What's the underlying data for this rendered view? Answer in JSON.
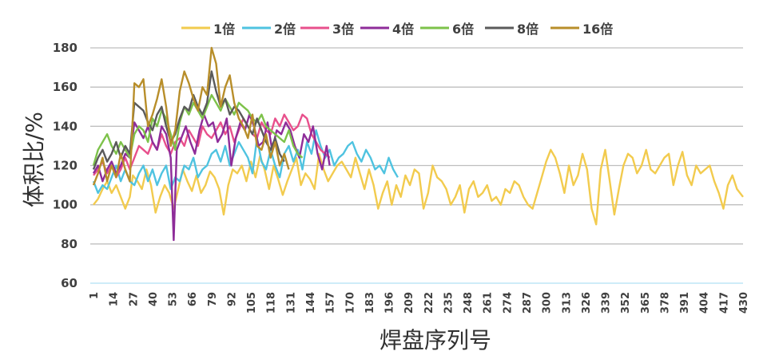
{
  "chart_data": {
    "type": "line",
    "title": "",
    "xlabel": "焊盘序列号",
    "ylabel": "体积比/%",
    "ylim": [
      60,
      180
    ],
    "yticks": [
      60,
      80,
      100,
      120,
      140,
      160,
      180
    ],
    "xlim": [
      1,
      430
    ],
    "xticks": [
      1,
      14,
      27,
      40,
      53,
      66,
      79,
      92,
      105,
      118,
      131,
      144,
      157,
      170,
      183,
      196,
      209,
      222,
      235,
      248,
      261,
      274,
      287,
      300,
      313,
      326,
      339,
      352,
      365,
      378,
      391,
      404,
      417,
      430
    ],
    "grid": "horizontal",
    "legend_position": "top",
    "series": [
      {
        "name": "1倍",
        "color": "#F2CB4E",
        "x": [
          1,
          4,
          7,
          10,
          13,
          16,
          19,
          22,
          25,
          27,
          30,
          33,
          36,
          39,
          42,
          45,
          48,
          51,
          54,
          57,
          60,
          63,
          66,
          69,
          72,
          75,
          78,
          81,
          84,
          87,
          90,
          93,
          96,
          99,
          102,
          105,
          108,
          111,
          114,
          117,
          120,
          123,
          126,
          129,
          132,
          135,
          138,
          141,
          144,
          147,
          150,
          153,
          156,
          159,
          162,
          165,
          168,
          171,
          174,
          177,
          180,
          183,
          186,
          189,
          192,
          195,
          198,
          201,
          204,
          207,
          210,
          213,
          216,
          219,
          222,
          225,
          228,
          231,
          234,
          237,
          240,
          243,
          246,
          249,
          252,
          255,
          258,
          261,
          264,
          267,
          270,
          273,
          276,
          279,
          282,
          285,
          288,
          291,
          294,
          297,
          300,
          303,
          306,
          309,
          312,
          315,
          318,
          321,
          324,
          327,
          330,
          333,
          336,
          339,
          342,
          345,
          348,
          351,
          354,
          357,
          360,
          363,
          366,
          369,
          372,
          375,
          378,
          381,
          384,
          387,
          390,
          393,
          396,
          399,
          402,
          405,
          408,
          411,
          414,
          417,
          420,
          423,
          426,
          430
        ],
        "y": [
          100,
          103,
          108,
          112,
          106,
          110,
          104,
          98,
          104,
          115,
          112,
          108,
          118,
          110,
          96,
          104,
          110,
          106,
          98,
          108,
          118,
          112,
          107,
          115,
          106,
          110,
          117,
          114,
          108,
          95,
          110,
          118,
          116,
          120,
          112,
          122,
          114,
          125,
          118,
          108,
          120,
          113,
          105,
          112,
          118,
          124,
          110,
          116,
          113,
          108,
          126,
          118,
          112,
          116,
          120,
          122,
          118,
          114,
          124,
          116,
          108,
          118,
          110,
          98,
          106,
          112,
          100,
          110,
          104,
          115,
          110,
          118,
          116,
          98,
          106,
          120,
          114,
          112,
          108,
          100,
          104,
          110,
          96,
          108,
          112,
          104,
          106,
          110,
          102,
          104,
          100,
          108,
          106,
          112,
          110,
          104,
          100,
          98,
          106,
          114,
          122,
          128,
          124,
          116,
          106,
          120,
          110,
          115,
          126,
          118,
          98,
          90,
          118,
          128,
          112,
          95,
          108,
          120,
          126,
          124,
          116,
          120,
          128,
          118,
          116,
          120,
          124,
          126,
          110,
          120,
          127,
          115,
          110,
          120,
          116,
          118,
          120,
          112,
          106,
          98,
          110,
          115,
          108,
          104
        ]
      },
      {
        "name": "2倍",
        "color": "#4FC3E0",
        "x": [
          1,
          4,
          7,
          10,
          13,
          16,
          19,
          22,
          25,
          28,
          31,
          34,
          37,
          40,
          43,
          46,
          49,
          52,
          55,
          58,
          61,
          64,
          67,
          70,
          73,
          76,
          79,
          82,
          85,
          88,
          91,
          94,
          97,
          100,
          103,
          106,
          109,
          112,
          115,
          118,
          121,
          124,
          127,
          130,
          133,
          136,
          139,
          142,
          145,
          148,
          151,
          154,
          157,
          160,
          163,
          166,
          169,
          172,
          175,
          178,
          181,
          184,
          187,
          190,
          193,
          196,
          199,
          202
        ],
        "y": [
          112,
          106,
          110,
          108,
          114,
          120,
          112,
          118,
          112,
          110,
          116,
          120,
          112,
          118,
          110,
          116,
          120,
          108,
          114,
          112,
          120,
          118,
          124,
          114,
          118,
          120,
          126,
          128,
          122,
          130,
          120,
          126,
          132,
          128,
          124,
          116,
          134,
          122,
          118,
          128,
          120,
          114,
          126,
          130,
          122,
          128,
          118,
          132,
          126,
          138,
          130,
          124,
          128,
          120,
          124,
          126,
          130,
          132,
          126,
          122,
          128,
          124,
          118,
          120,
          116,
          124,
          118,
          114
        ]
      },
      {
        "name": "3倍",
        "color": "#E8508C",
        "x": [
          1,
          4,
          7,
          10,
          13,
          16,
          19,
          22,
          25,
          28,
          31,
          34,
          37,
          40,
          43,
          46,
          49,
          52,
          55,
          58,
          61,
          64,
          67,
          70,
          73,
          76,
          79,
          82,
          85,
          88,
          91,
          94,
          97,
          100,
          103,
          106,
          109,
          112,
          115,
          118,
          121,
          124,
          127,
          130,
          133,
          136,
          139,
          142,
          145,
          148,
          151,
          154,
          157
        ],
        "y": [
          115,
          118,
          122,
          116,
          120,
          114,
          118,
          124,
          118,
          124,
          130,
          128,
          126,
          132,
          128,
          136,
          130,
          126,
          132,
          134,
          130,
          138,
          134,
          130,
          140,
          136,
          134,
          138,
          142,
          136,
          140,
          132,
          138,
          144,
          140,
          136,
          134,
          142,
          138,
          136,
          144,
          140,
          146,
          142,
          138,
          140,
          146,
          144,
          136,
          132,
          128,
          126,
          124
        ]
      },
      {
        "name": "4倍",
        "color": "#8E2C99",
        "x": [
          1,
          4,
          7,
          10,
          13,
          16,
          19,
          22,
          25,
          28,
          31,
          34,
          37,
          40,
          43,
          46,
          49,
          52,
          54,
          56,
          59,
          62,
          65,
          68,
          71,
          74,
          77,
          80,
          83,
          86,
          89,
          92,
          95,
          98,
          101,
          104,
          107,
          110,
          113,
          116,
          119,
          122,
          125,
          128,
          131,
          134,
          137,
          140,
          143,
          146,
          149,
          152,
          155,
          157
        ],
        "y": [
          116,
          120,
          112,
          118,
          122,
          116,
          120,
          126,
          124,
          142,
          138,
          134,
          140,
          132,
          128,
          140,
          136,
          124,
          82,
          128,
          134,
          140,
          132,
          126,
          138,
          146,
          140,
          142,
          132,
          136,
          144,
          120,
          134,
          142,
          138,
          146,
          140,
          130,
          132,
          142,
          128,
          138,
          136,
          142,
          138,
          130,
          124,
          136,
          132,
          140,
          126,
          118,
          130,
          120
        ]
      },
      {
        "name": "6倍",
        "color": "#7DC24A",
        "x": [
          1,
          4,
          7,
          10,
          13,
          16,
          19,
          22,
          25,
          28,
          31,
          34,
          37,
          40,
          43,
          46,
          49,
          52,
          55,
          58,
          61,
          64,
          67,
          70,
          73,
          76,
          79,
          82,
          85,
          88,
          91,
          94,
          97,
          100,
          103,
          106,
          109,
          112,
          115,
          118,
          121,
          124,
          127,
          130,
          133,
          136,
          139
        ],
        "y": [
          120,
          128,
          132,
          136,
          130,
          126,
          132,
          128,
          124,
          136,
          140,
          138,
          132,
          144,
          140,
          148,
          144,
          136,
          128,
          142,
          150,
          146,
          152,
          148,
          144,
          150,
          156,
          152,
          148,
          154,
          150,
          146,
          152,
          150,
          148,
          144,
          142,
          146,
          140,
          138,
          136,
          134,
          132,
          138,
          130,
          126,
          124
        ]
      },
      {
        "name": "8倍",
        "color": "#5A5A5A",
        "x": [
          1,
          4,
          7,
          10,
          13,
          16,
          19,
          22,
          25,
          28,
          31,
          34,
          37,
          40,
          43,
          46,
          49,
          52,
          55,
          58,
          61,
          64,
          67,
          70,
          73,
          76,
          79,
          82,
          85,
          88,
          91,
          94,
          97,
          100,
          103,
          106,
          109,
          112,
          115,
          118,
          121,
          124,
          127
        ],
        "y": [
          118,
          124,
          128,
          122,
          126,
          132,
          124,
          130,
          126,
          152,
          150,
          148,
          142,
          138,
          146,
          150,
          140,
          132,
          136,
          144,
          150,
          148,
          156,
          150,
          146,
          152,
          168,
          158,
          150,
          154,
          146,
          150,
          148,
          144,
          140,
          136,
          144,
          138,
          132,
          128,
          134,
          126,
          122
        ]
      },
      {
        "name": "16倍",
        "color": "#B88E2A",
        "x": [
          1,
          4,
          7,
          10,
          13,
          16,
          19,
          22,
          25,
          28,
          31,
          34,
          37,
          40,
          43,
          46,
          49,
          52,
          55,
          58,
          61,
          64,
          67,
          70,
          73,
          76,
          79,
          82,
          85,
          88,
          91,
          94,
          97,
          100,
          103,
          106,
          109,
          112,
          115,
          118,
          121,
          124,
          127,
          130
        ],
        "y": [
          110,
          116,
          124,
          112,
          120,
          114,
          126,
          118,
          112,
          162,
          160,
          164,
          140,
          146,
          154,
          164,
          150,
          130,
          138,
          158,
          168,
          162,
          154,
          148,
          160,
          156,
          180,
          172,
          150,
          160,
          166,
          152,
          144,
          140,
          134,
          146,
          130,
          128,
          136,
          124,
          132,
          120,
          126,
          118
        ]
      }
    ]
  },
  "legend": {
    "items": [
      {
        "label": "1倍",
        "color": "#F2CB4E"
      },
      {
        "label": "2倍",
        "color": "#4FC3E0"
      },
      {
        "label": "3倍",
        "color": "#E8508C"
      },
      {
        "label": "4倍",
        "color": "#8E2C99"
      },
      {
        "label": "6倍",
        "color": "#7DC24A"
      },
      {
        "label": "8倍",
        "color": "#5A5A5A"
      },
      {
        "label": "16倍",
        "color": "#B88E2A"
      }
    ]
  },
  "axes": {
    "y_title": "体积比/%",
    "x_title": "焊盘序列号",
    "gridline_color": "#BFBFBF",
    "baseline_color": "#BDE6F5"
  }
}
